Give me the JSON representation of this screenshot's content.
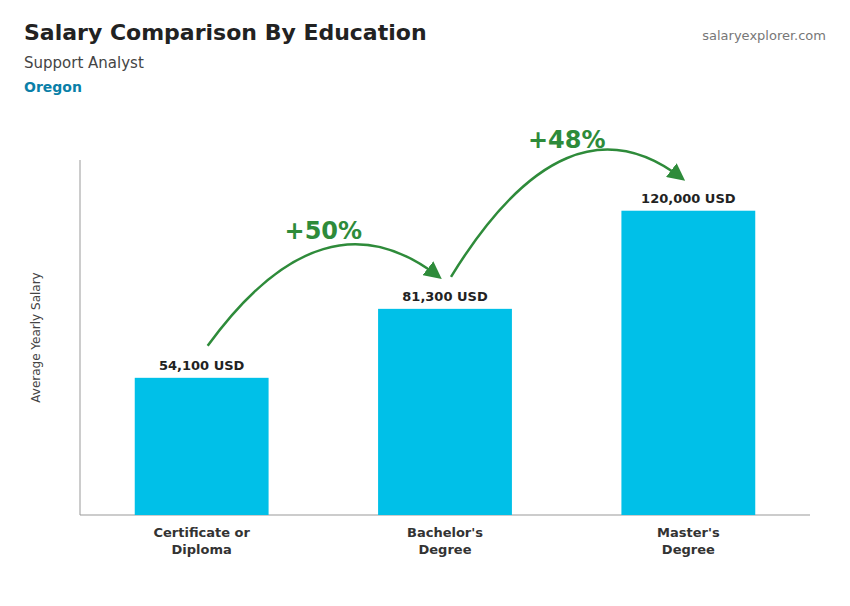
{
  "chart_data": {
    "type": "bar",
    "title": "Salary Comparison By Education",
    "subtitle": "Support Analyst",
    "annotations": [
      "Oregon",
      "salaryexplorer.com"
    ],
    "y_label": "Average Yearly Salary",
    "categories": [
      "Certificate or\nDiploma",
      "Bachelor's\nDegree",
      "Master's\nDegree"
    ],
    "values": [
      54100,
      81300,
      120000
    ],
    "value_labels": [
      "54,100 USD",
      "81,300 USD",
      "120,000 USD"
    ],
    "arrow_labels": [
      "+50%",
      "+48%"
    ],
    "color": "#00C0E8",
    "ylim": [
      0,
      140000
    ],
    "data_labels": true,
    "tick_labels": false,
    "grid": false
  }
}
